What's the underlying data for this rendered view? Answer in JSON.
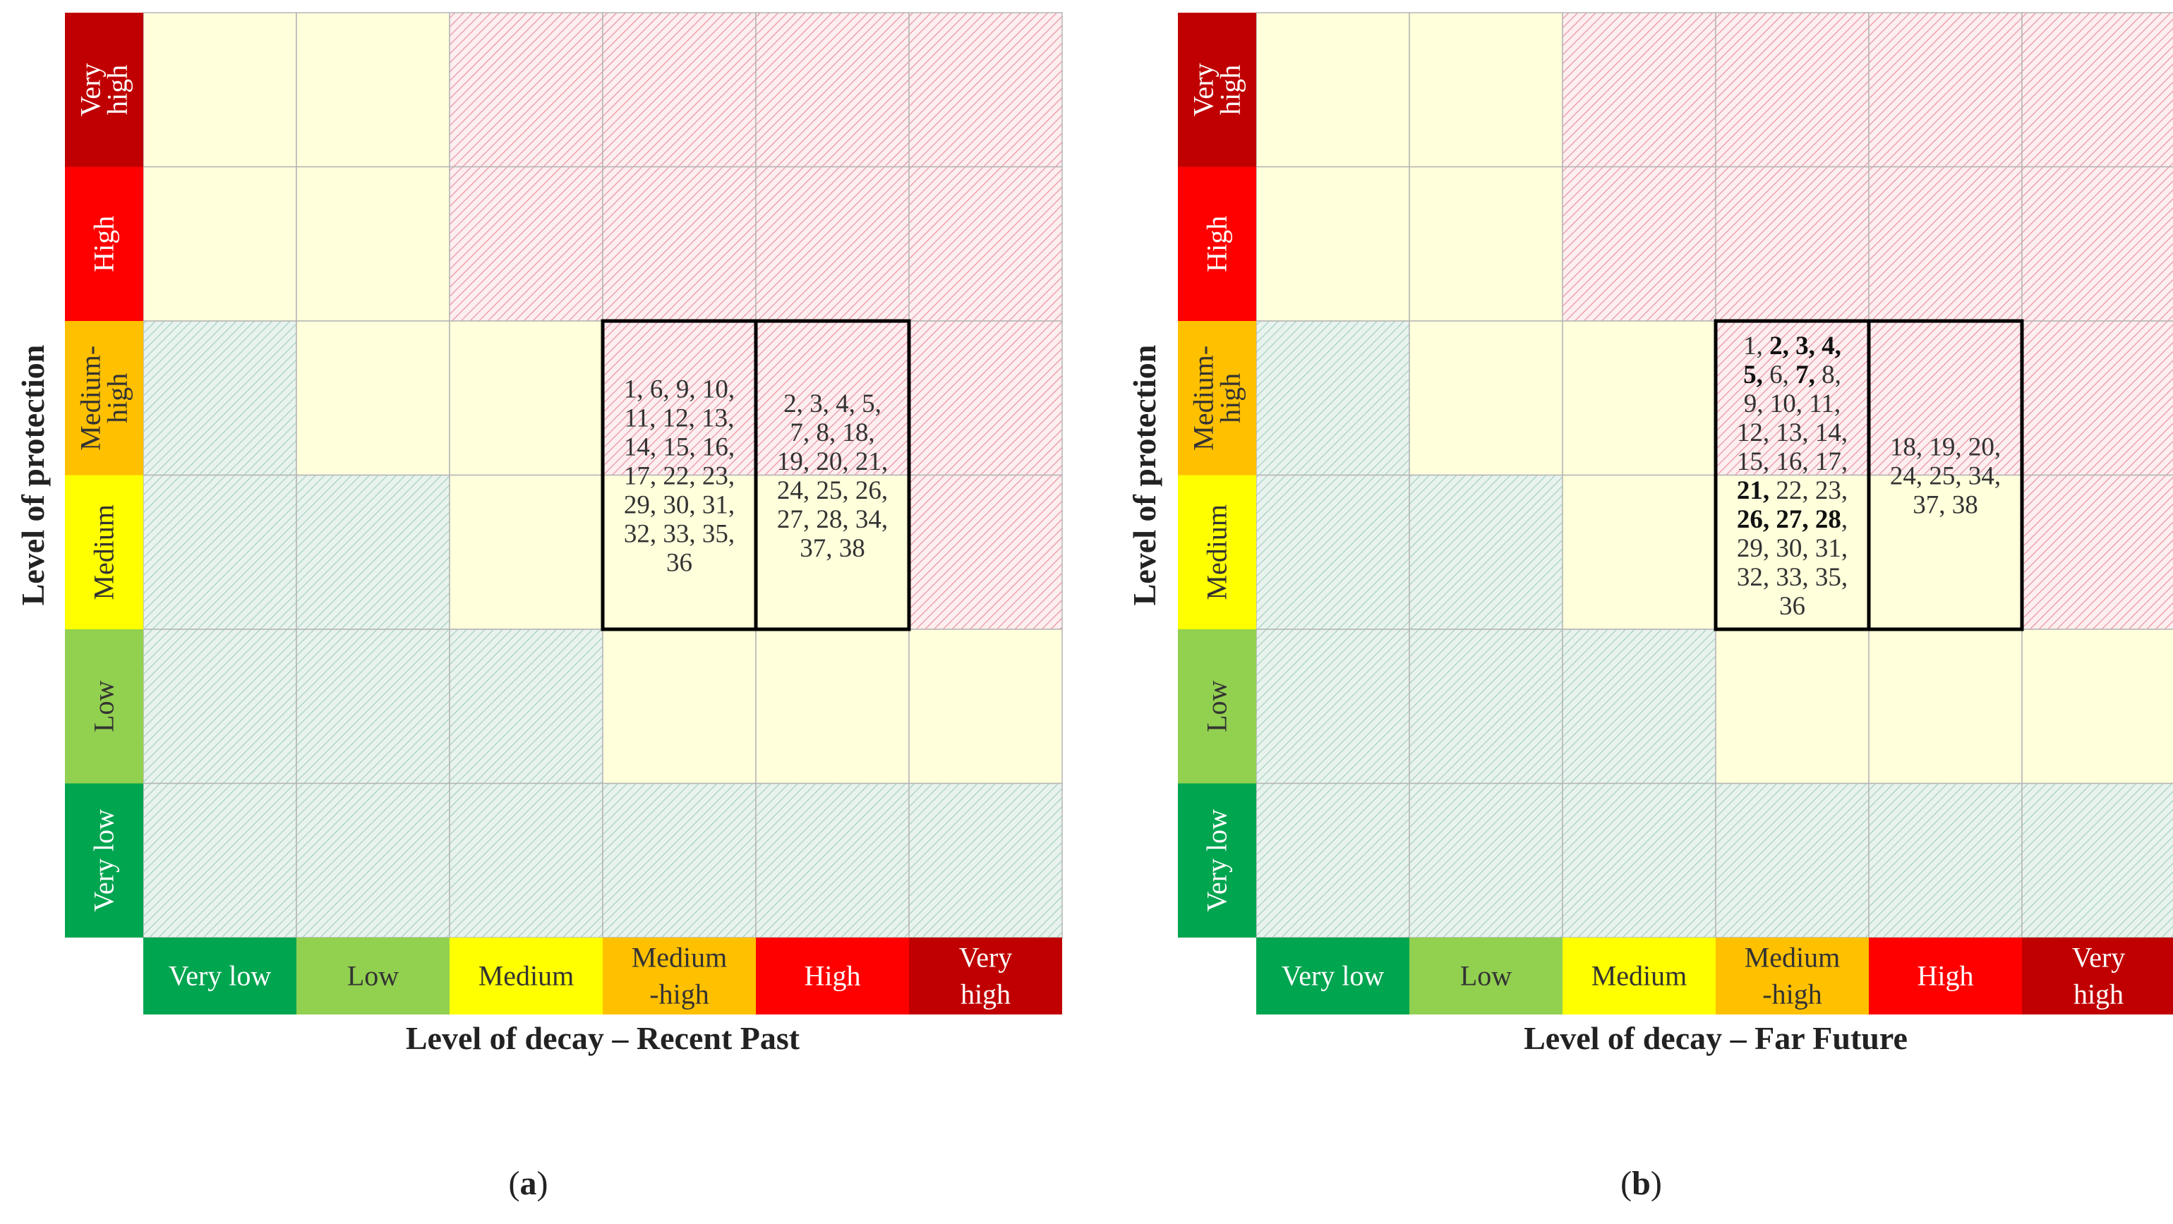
{
  "colors": {
    "level": [
      "#00a550",
      "#92d050",
      "#ffff00",
      "#ffc000",
      "#ff0000",
      "#c00000"
    ],
    "zone_safe_fill": "#e8f3ee",
    "zone_safe_hatch": "#9fcdbb",
    "zone_caution_fill": "#ffffdc",
    "zone_risk_fill": "#fdeef0",
    "zone_risk_hatch": "#e88a97",
    "grid_line": "#b5b5b5"
  },
  "chart_data": [
    {
      "type": "heatmap",
      "panel_label": "(a)",
      "panel_letter": "a",
      "ylabel": "Level of protection",
      "xlabel": "Level of decay – Recent Past",
      "x_levels": [
        {
          "key": "very-low",
          "lines": [
            "Very low"
          ]
        },
        {
          "key": "low",
          "lines": [
            "Low"
          ]
        },
        {
          "key": "medium",
          "lines": [
            "Medium"
          ]
        },
        {
          "key": "medium-high",
          "lines": [
            "Medium",
            "-high"
          ]
        },
        {
          "key": "high",
          "lines": [
            "High"
          ]
        },
        {
          "key": "very-high",
          "lines": [
            "Very",
            "high"
          ]
        }
      ],
      "y_levels": [
        {
          "key": "very-high",
          "lines": [
            "Very",
            "high"
          ]
        },
        {
          "key": "high",
          "lines": [
            "High"
          ]
        },
        {
          "key": "medium-high",
          "lines": [
            "Medium-",
            "high"
          ]
        },
        {
          "key": "medium",
          "lines": [
            "Medium"
          ]
        },
        {
          "key": "low",
          "lines": [
            "Low"
          ]
        },
        {
          "key": "very-low",
          "lines": [
            "Very low"
          ]
        }
      ],
      "zones": [
        [
          "caution",
          "caution",
          "risk",
          "risk",
          "risk",
          "risk"
        ],
        [
          "caution",
          "caution",
          "risk",
          "risk",
          "risk",
          "risk"
        ],
        [
          "safe",
          "caution",
          "caution",
          "risk",
          "risk",
          "risk"
        ],
        [
          "safe",
          "safe",
          "caution",
          "caution",
          "caution",
          "risk"
        ],
        [
          "safe",
          "safe",
          "safe",
          "caution",
          "caution",
          "caution"
        ],
        [
          "safe",
          "safe",
          "safe",
          "safe",
          "safe",
          "safe"
        ]
      ],
      "groups": [
        {
          "decay_level": "Medium-high",
          "protection_levels": [
            "Medium-high",
            "Medium"
          ],
          "lines": [
            [
              {
                "t": "1, 6, 9, 10,",
                "b": false
              }
            ],
            [
              {
                "t": "11, 12, 13,",
                "b": false
              }
            ],
            [
              {
                "t": "14, 15, 16,",
                "b": false
              }
            ],
            [
              {
                "t": "17, 22, 23,",
                "b": false
              }
            ],
            [
              {
                "t": "29, 30, 31,",
                "b": false
              }
            ],
            [
              {
                "t": "32, 33, 35,",
                "b": false
              }
            ],
            [
              {
                "t": "36",
                "b": false
              }
            ]
          ]
        },
        {
          "decay_level": "High",
          "protection_levels": [
            "Medium-high",
            "Medium"
          ],
          "lines": [
            [
              {
                "t": "2, 3, 4, 5,",
                "b": false
              }
            ],
            [
              {
                "t": "7, 8, 18,",
                "b": false
              }
            ],
            [
              {
                "t": "19, 20, 21,",
                "b": false
              }
            ],
            [
              {
                "t": "24, 25, 26,",
                "b": false
              }
            ],
            [
              {
                "t": "27, 28, 34,",
                "b": false
              }
            ],
            [
              {
                "t": "37, 38",
                "b": false
              }
            ]
          ]
        }
      ]
    },
    {
      "type": "heatmap",
      "panel_label": "(b)",
      "panel_letter": "b",
      "ylabel": "Level of protection",
      "xlabel": "Level of decay – Far Future",
      "x_levels": [
        {
          "key": "very-low",
          "lines": [
            "Very low"
          ]
        },
        {
          "key": "low",
          "lines": [
            "Low"
          ]
        },
        {
          "key": "medium",
          "lines": [
            "Medium"
          ]
        },
        {
          "key": "medium-high",
          "lines": [
            "Medium",
            "-high"
          ]
        },
        {
          "key": "high",
          "lines": [
            "High"
          ]
        },
        {
          "key": "very-high",
          "lines": [
            "Very",
            "high"
          ]
        }
      ],
      "y_levels": [
        {
          "key": "very-high",
          "lines": [
            "Very",
            "high"
          ]
        },
        {
          "key": "high",
          "lines": [
            "High"
          ]
        },
        {
          "key": "medium-high",
          "lines": [
            "Medium-",
            "high"
          ]
        },
        {
          "key": "medium",
          "lines": [
            "Medium"
          ]
        },
        {
          "key": "low",
          "lines": [
            "Low"
          ]
        },
        {
          "key": "very-low",
          "lines": [
            "Very low"
          ]
        }
      ],
      "zones": [
        [
          "caution",
          "caution",
          "risk",
          "risk",
          "risk",
          "risk"
        ],
        [
          "caution",
          "caution",
          "risk",
          "risk",
          "risk",
          "risk"
        ],
        [
          "safe",
          "caution",
          "caution",
          "risk",
          "risk",
          "risk"
        ],
        [
          "safe",
          "safe",
          "caution",
          "caution",
          "caution",
          "risk"
        ],
        [
          "safe",
          "safe",
          "safe",
          "caution",
          "caution",
          "caution"
        ],
        [
          "safe",
          "safe",
          "safe",
          "safe",
          "safe",
          "safe"
        ]
      ],
      "groups": [
        {
          "decay_level": "Medium-high",
          "protection_levels": [
            "Medium-high",
            "Medium"
          ],
          "lines": [
            [
              {
                "t": "1, ",
                "b": false
              },
              {
                "t": "2, 3, 4,",
                "b": true
              }
            ],
            [
              {
                "t": "5,",
                "b": true
              },
              {
                "t": " 6, ",
                "b": false
              },
              {
                "t": "7,",
                "b": true
              },
              {
                "t": " 8,",
                "b": false
              }
            ],
            [
              {
                "t": "9, 10, 11,",
                "b": false
              }
            ],
            [
              {
                "t": "12, 13, 14,",
                "b": false
              }
            ],
            [
              {
                "t": "15, 16, 17,",
                "b": false
              }
            ],
            [
              {
                "t": "21,",
                "b": true
              },
              {
                "t": " 22, 23,",
                "b": false
              }
            ],
            [
              {
                "t": "26, 27, 28",
                "b": true
              },
              {
                "t": ",",
                "b": false
              }
            ],
            [
              {
                "t": "29, 30, 31,",
                "b": false
              }
            ],
            [
              {
                "t": "32, 33, 35,",
                "b": false
              }
            ],
            [
              {
                "t": "36",
                "b": false
              }
            ]
          ]
        },
        {
          "decay_level": "High",
          "protection_levels": [
            "Medium-high",
            "Medium"
          ],
          "lines": [
            [
              {
                "t": "18, 19, 20,",
                "b": false
              }
            ],
            [
              {
                "t": "24, 25, 34,",
                "b": false
              }
            ],
            [
              {
                "t": "37, 38",
                "b": false
              }
            ]
          ]
        }
      ]
    }
  ]
}
